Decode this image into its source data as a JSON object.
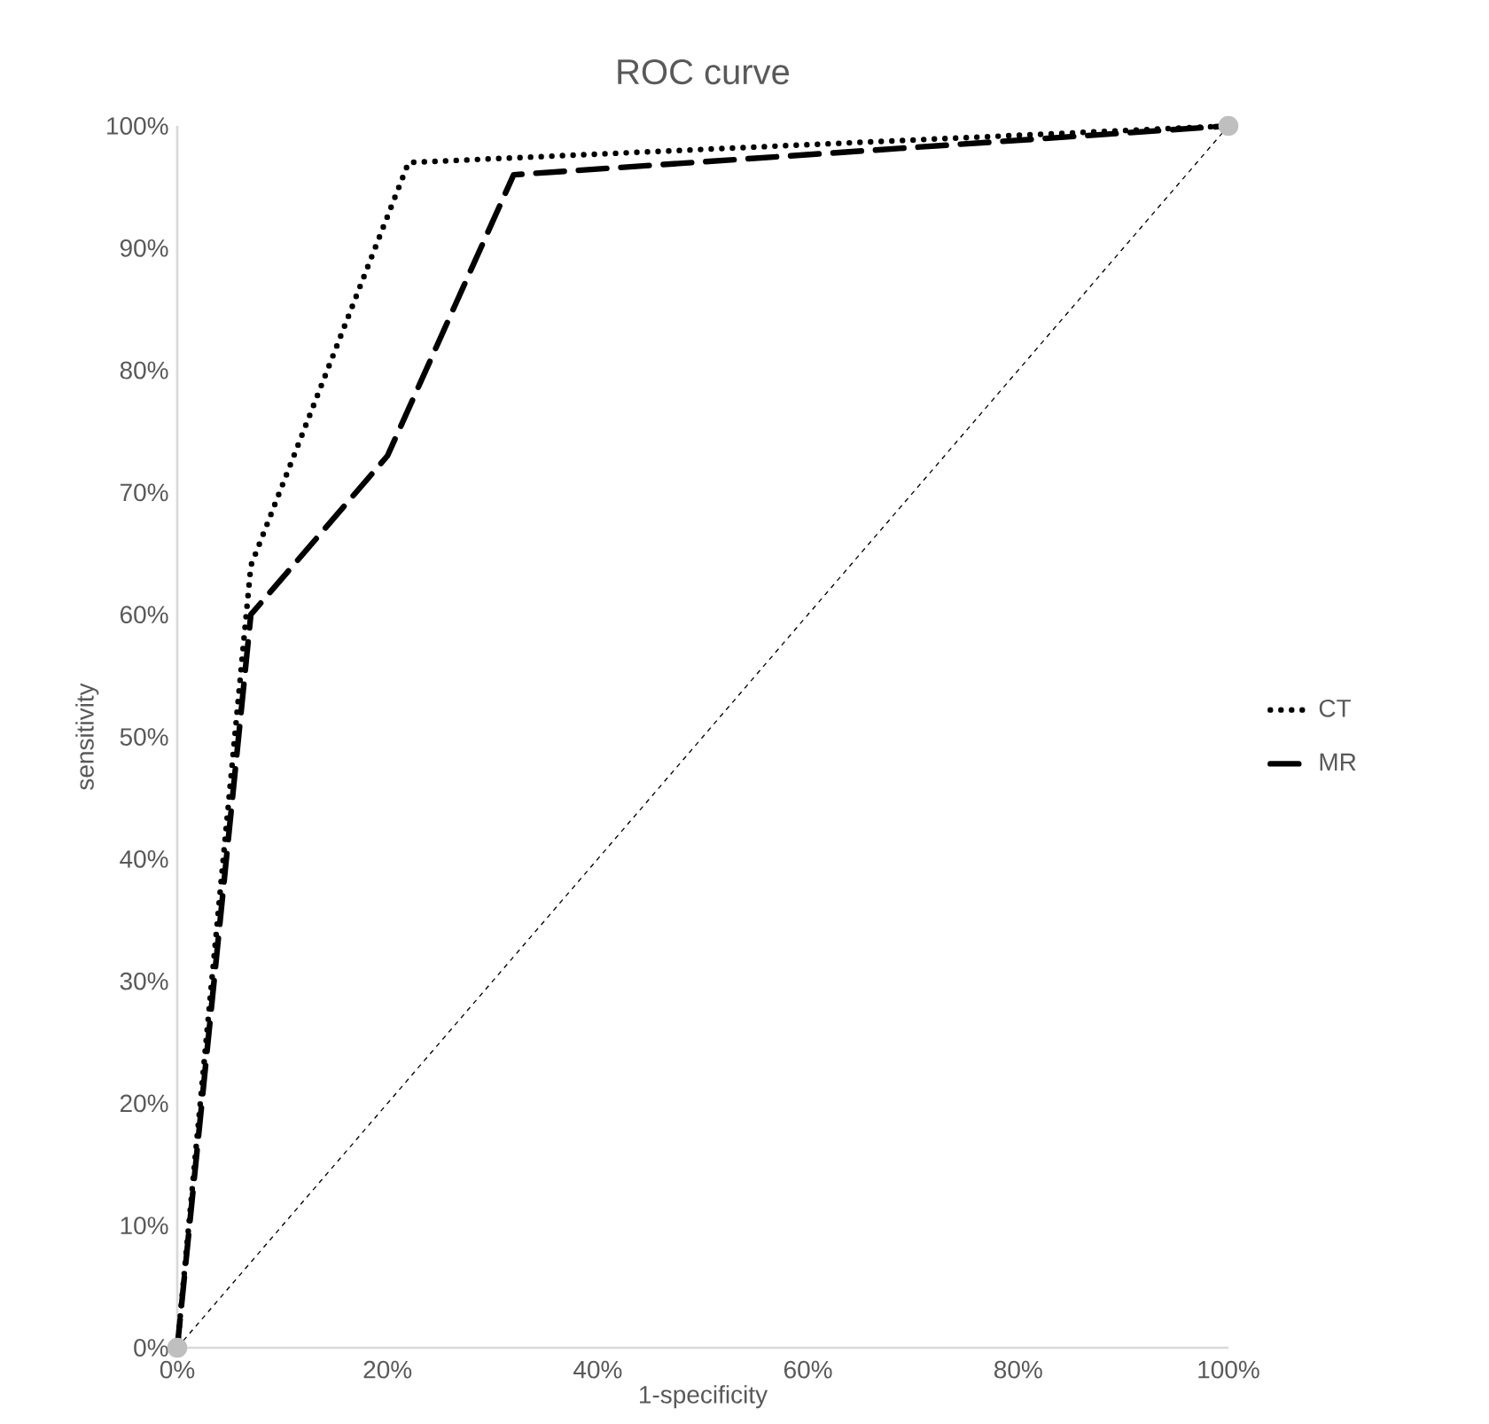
{
  "chart_data": {
    "type": "line",
    "title": "ROC curve",
    "xlabel": "1-specificity",
    "ylabel": "sensitivity",
    "series": [
      {
        "name": "CT",
        "color": "#000000",
        "x": [
          0,
          7,
          22,
          100
        ],
        "values": [
          0,
          64,
          97,
          100
        ],
        "line_style": "dotted"
      },
      {
        "name": "MR",
        "color": "#000000",
        "x": [
          0,
          7,
          20,
          32,
          100
        ],
        "values": [
          0,
          60,
          73,
          96,
          100
        ],
        "line_style": "dashed"
      },
      {
        "color": "#000000",
        "x": [
          0,
          100
        ],
        "values": [
          0,
          100
        ],
        "line_style": "dashed"
      },
      {
        "type": "scatter",
        "color": "#bfbfbf",
        "x": [
          0,
          100
        ],
        "values": [
          0,
          100
        ],
        "marker": "circle"
      }
    ],
    "xlim": [
      0,
      100
    ],
    "ylim": [
      0,
      100
    ],
    "xticks": [
      {
        "value": 0,
        "label": "0%"
      },
      {
        "value": 20,
        "label": "20%"
      },
      {
        "value": 40,
        "label": "40%"
      },
      {
        "value": 60,
        "label": "60%"
      },
      {
        "value": 80,
        "label": "80%"
      },
      {
        "value": 100,
        "label": "100%"
      }
    ],
    "yticks": [
      {
        "value": 0,
        "label": "0%"
      },
      {
        "value": 10,
        "label": "10%"
      },
      {
        "value": 20,
        "label": "20%"
      },
      {
        "value": 30,
        "label": "30%"
      },
      {
        "value": 40,
        "label": "40%"
      },
      {
        "value": 50,
        "label": "50%"
      },
      {
        "value": 60,
        "label": "60%"
      },
      {
        "value": 70,
        "label": "70%"
      },
      {
        "value": 80,
        "label": "80%"
      },
      {
        "value": 90,
        "label": "90%"
      },
      {
        "value": 100,
        "label": "100%"
      }
    ],
    "grid": false,
    "legend": "right"
  }
}
